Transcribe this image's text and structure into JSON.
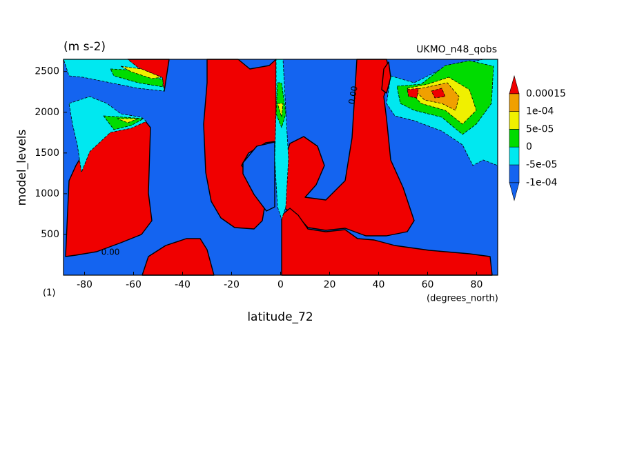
{
  "chart_data": {
    "type": "contour",
    "title": "(m s-2)",
    "subtitle": "UKMO_n48_qobs",
    "xlabel": "latitude_72",
    "ylabel": "model_levels",
    "x_units": "(degrees_north)",
    "corner_label": "(1)",
    "xlim": [
      -88.6,
      88.6
    ],
    "ylim": [
      0,
      2650
    ],
    "xticks": [
      -80,
      -60,
      -40,
      -20,
      0,
      20,
      40,
      60,
      80
    ],
    "yticks": [
      500,
      1000,
      1500,
      2000,
      2500
    ],
    "levels": [
      {
        "value": -0.0001,
        "label": "-1e-04"
      },
      {
        "value": -5e-05,
        "label": "-5e-05"
      },
      0,
      {
        "value": 5e-05,
        "label": "5e-05"
      },
      {
        "value": 0.0001,
        "label": "1e-04"
      },
      0.00015
    ],
    "colors": [
      "#1464f0",
      "#1464f0",
      "#00e8f0",
      "#00dc00",
      "#f0f000",
      "#f0a000",
      "#f00000"
    ],
    "contour_labels": [
      "0.00",
      "0.00"
    ]
  }
}
